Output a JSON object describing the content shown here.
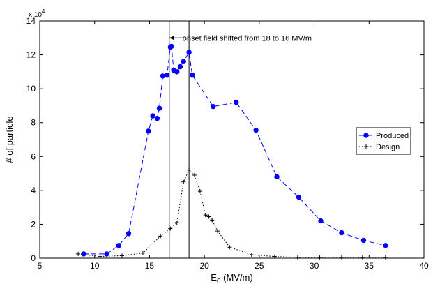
{
  "chart_data": {
    "type": "line",
    "xlabel": "E",
    "xlabel_sub": "0",
    "xlabel_unit": " (MV/m)",
    "ylabel": "# of particle",
    "xlim": [
      5,
      40
    ],
    "ylim": [
      0,
      140000
    ],
    "y_scale_label": "x 10",
    "y_scale_exp": "4",
    "x_ticks": [
      5,
      10,
      15,
      20,
      25,
      30,
      35,
      40
    ],
    "x_tick_labels": [
      "5",
      "10",
      "15",
      "20",
      "25",
      "30",
      "35",
      "40"
    ],
    "y_ticks": [
      0,
      20000,
      40000,
      60000,
      80000,
      100000,
      120000,
      140000
    ],
    "y_tick_labels": [
      "0",
      "2",
      "4",
      "6",
      "8",
      "10",
      "12",
      "14"
    ],
    "grid": false,
    "legend_position": "right",
    "series": [
      {
        "name": "Produced",
        "color": "#0000ff",
        "line_style": "dashed",
        "marker": "circle",
        "x": [
          9.0,
          11.1,
          12.2,
          13.1,
          14.9,
          15.3,
          15.7,
          15.9,
          16.2,
          16.6,
          16.9,
          17.0,
          17.2,
          17.5,
          17.8,
          18.1,
          18.6,
          18.9,
          20.8,
          22.9,
          24.7,
          26.6,
          28.6,
          30.6,
          32.5,
          34.5,
          36.5
        ],
        "y": [
          2500,
          2500,
          7500,
          14500,
          75000,
          84000,
          82500,
          88500,
          107500,
          108000,
          124500,
          125000,
          111000,
          110000,
          113000,
          116000,
          121500,
          108000,
          89500,
          92000,
          75500,
          48000,
          36000,
          22000,
          15000,
          10500,
          7500
        ]
      },
      {
        "name": "Design",
        "color": "#000000",
        "line_style": "dotted",
        "marker": "plus",
        "x": [
          8.5,
          10.5,
          12.5,
          14.4,
          16.0,
          16.9,
          17.5,
          18.1,
          18.6,
          19.1,
          19.6,
          20.1,
          20.4,
          20.7,
          21.2,
          22.3,
          24.3,
          26.4,
          28.5,
          30.5,
          32.5,
          34.4,
          36.5
        ],
        "y": [
          2500,
          1000,
          1500,
          3000,
          13000,
          17500,
          21000,
          45000,
          52000,
          49000,
          39500,
          25500,
          24500,
          22500,
          16000,
          6500,
          2000,
          1000,
          500,
          500,
          500,
          500,
          500
        ]
      }
    ],
    "vertical_lines": [
      16.8,
      18.6
    ],
    "annotation": {
      "text": "onset field shifted from 18 to 16 MV/m",
      "arrow_x": 16.8,
      "y": 130000
    }
  }
}
